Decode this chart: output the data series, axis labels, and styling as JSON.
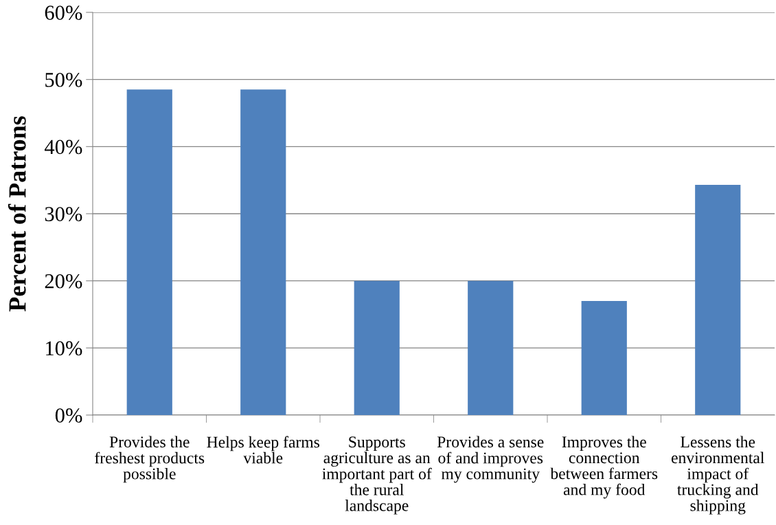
{
  "chart_data": {
    "type": "bar",
    "ylabel": "Percent of Patrons",
    "categories": [
      "Provides the\nfreshest products\npossible",
      "Helps keep farms\nviable",
      "Supports\nagriculture as an\nimportant part of\nthe rural\nlandscape",
      "Provides a sense\nof and improves\nmy community",
      "Improves the\nconnection\nbetween farmers\nand my food",
      "Lessens the\nenvironmental\nimpact of\ntrucking and\nshipping"
    ],
    "values": [
      48.5,
      48.5,
      20,
      20,
      17,
      34.3
    ],
    "color": "#4f81bd",
    "ylim": [
      0,
      60
    ],
    "yticks": [
      {
        "value": 0,
        "label": "0%"
      },
      {
        "value": 10,
        "label": "10%"
      },
      {
        "value": 20,
        "label": "20%"
      },
      {
        "value": 30,
        "label": "30%"
      },
      {
        "value": 40,
        "label": "40%"
      },
      {
        "value": 50,
        "label": "50%"
      },
      {
        "value": 60,
        "label": "60%"
      }
    ],
    "grid": "y",
    "legend": false
  }
}
